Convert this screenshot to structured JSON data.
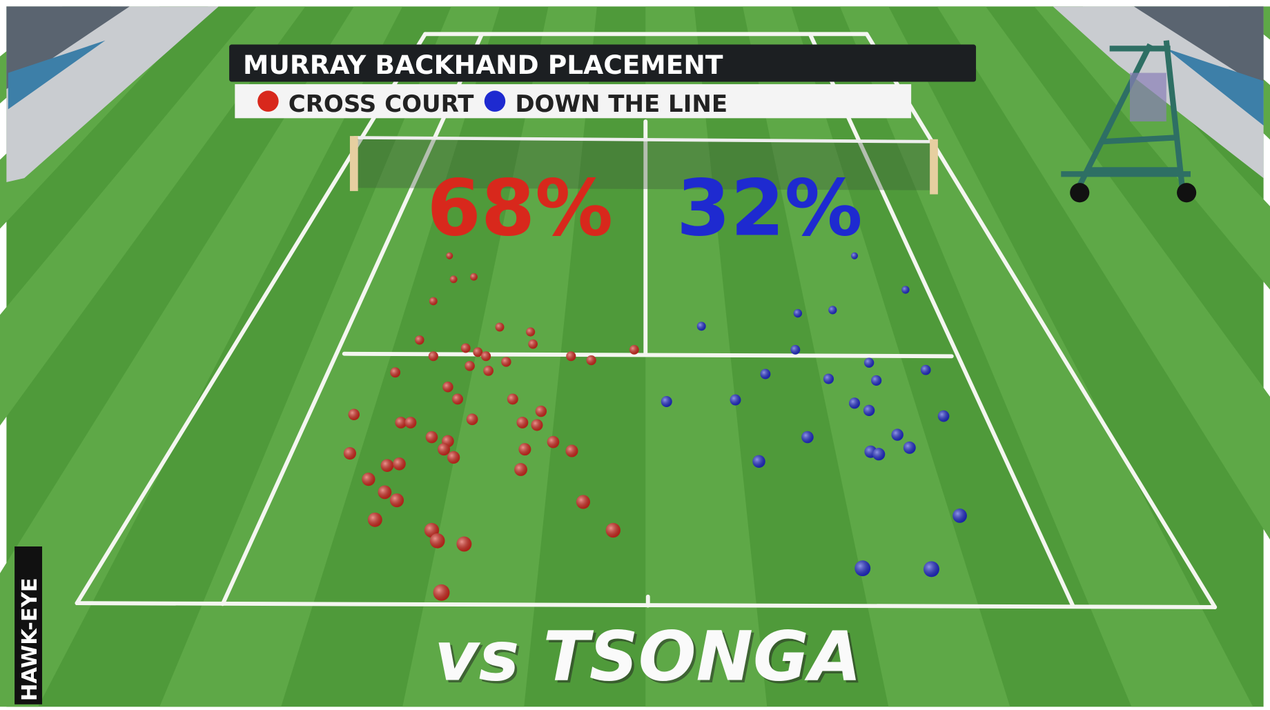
{
  "header": {
    "title": "MURRAY BACKHAND PLACEMENT"
  },
  "legend": [
    {
      "label": "CROSS COURT",
      "color": "#d8281c"
    },
    {
      "label": "DOWN THE LINE",
      "color": "#1e2ad0"
    }
  ],
  "stats": [
    "68%",
    "32%"
  ],
  "opponent": "vs TSONGA",
  "credit": "HAWK-EYE"
}
